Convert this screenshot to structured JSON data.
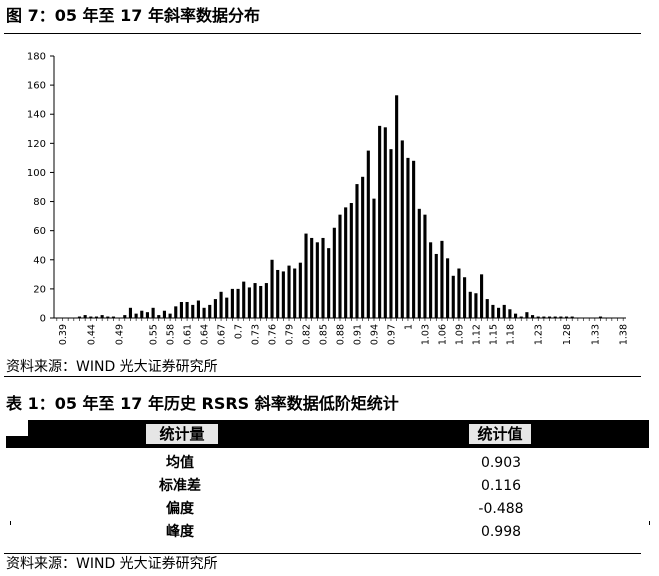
{
  "figure": {
    "title": "图 7：05 年至 17 年斜率数据分布",
    "source": "资料来源：WIND 光大证券研究所"
  },
  "chart_data": {
    "type": "bar",
    "title": "",
    "xlabel": "",
    "ylabel": "",
    "ylim": [
      0,
      180
    ],
    "yticks": [
      0,
      20,
      40,
      60,
      80,
      100,
      120,
      140,
      160,
      180
    ],
    "categories": [
      0.38,
      0.39,
      0.4,
      0.41,
      0.42,
      0.43,
      0.44,
      0.45,
      0.46,
      0.47,
      0.48,
      0.49,
      0.5,
      0.51,
      0.52,
      0.53,
      0.54,
      0.55,
      0.56,
      0.57,
      0.58,
      0.59,
      0.6,
      0.61,
      0.62,
      0.63,
      0.64,
      0.65,
      0.66,
      0.67,
      0.68,
      0.69,
      0.7,
      0.71,
      0.72,
      0.73,
      0.74,
      0.75,
      0.76,
      0.77,
      0.78,
      0.79,
      0.8,
      0.81,
      0.82,
      0.83,
      0.84,
      0.85,
      0.86,
      0.87,
      0.88,
      0.89,
      0.9,
      0.91,
      0.92,
      0.93,
      0.94,
      0.95,
      0.96,
      0.97,
      0.98,
      0.99,
      1.0,
      1.01,
      1.02,
      1.03,
      1.04,
      1.05,
      1.06,
      1.07,
      1.08,
      1.09,
      1.1,
      1.11,
      1.12,
      1.13,
      1.14,
      1.15,
      1.16,
      1.17,
      1.18,
      1.19,
      1.2,
      1.21,
      1.22,
      1.23,
      1.24,
      1.25,
      1.26,
      1.27,
      1.28,
      1.29,
      1.3,
      1.31,
      1.32,
      1.33,
      1.34,
      1.35,
      1.36,
      1.37,
      1.38
    ],
    "xtick_labels": [
      "0.39",
      "0.44",
      "0.49",
      "0.55",
      "0.58",
      "0.61",
      "0.64",
      "0.67",
      "0.7",
      "0.73",
      "0.76",
      "0.79",
      "0.82",
      "0.85",
      "0.88",
      "0.91",
      "0.94",
      "0.97",
      "1",
      "1.03",
      "1.06",
      "1.09",
      "1.12",
      "1.15",
      "1.18",
      "1.23",
      "1.28",
      "1.33",
      "1.38"
    ],
    "values": [
      0,
      0,
      0,
      0,
      1,
      2,
      1,
      1,
      2,
      1,
      1,
      0,
      2,
      7,
      3,
      5,
      4,
      7,
      2,
      5,
      3,
      8,
      11,
      11,
      9,
      12,
      7,
      9,
      13,
      18,
      14,
      20,
      20,
      25,
      21,
      24,
      22,
      24,
      40,
      33,
      32,
      36,
      34,
      38,
      58,
      55,
      52,
      55,
      48,
      62,
      71,
      76,
      79,
      92,
      97,
      115,
      82,
      132,
      131,
      116,
      153,
      122,
      110,
      108,
      75,
      71,
      52,
      44,
      53,
      41,
      29,
      34,
      28,
      18,
      17,
      30,
      13,
      9,
      7,
      9,
      6,
      3,
      1,
      4,
      2,
      1,
      1,
      1,
      1,
      1,
      1,
      1,
      0,
      0,
      0,
      0,
      1,
      0,
      0,
      0,
      0
    ],
    "grid": false,
    "legend": "none"
  },
  "table": {
    "title": "表 1：05 年至 17 年历史 RSRS 斜率数据低阶矩统计",
    "header_stat": "统计量",
    "header_value": "统计值",
    "rows": [
      {
        "label": "均值",
        "value": "0.903"
      },
      {
        "label": "标准差",
        "value": "0.116"
      },
      {
        "label": "偏度",
        "value": "-0.488"
      },
      {
        "label": "峰度",
        "value": "0.998"
      }
    ],
    "source": "资料来源：WIND 光大证券研究所"
  }
}
